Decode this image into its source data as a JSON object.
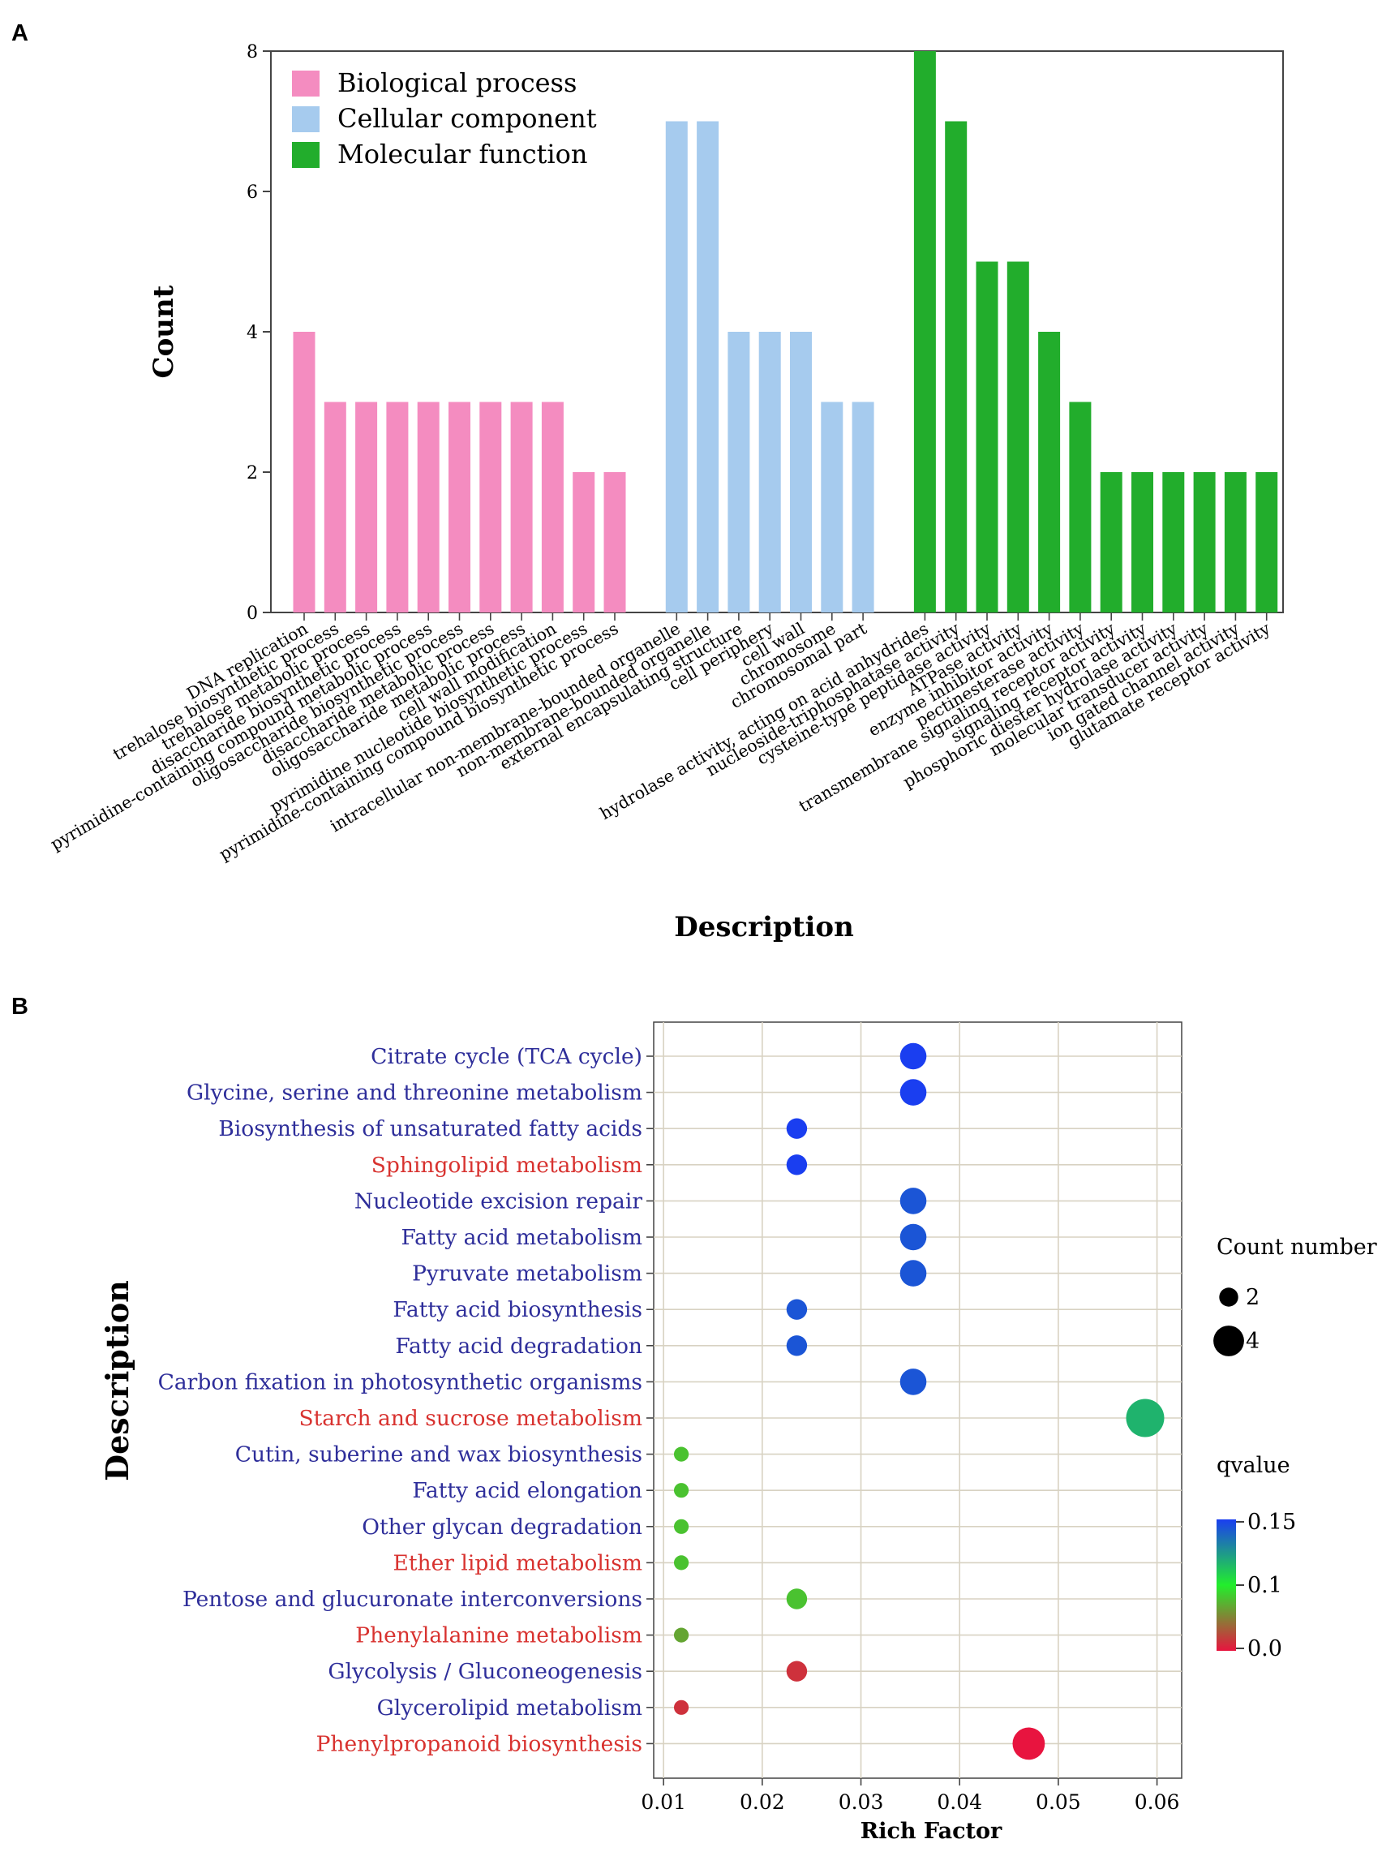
{
  "chart_data": [
    {
      "type": "bar",
      "panel_label": "A",
      "title": "",
      "xlabel": "Description",
      "ylabel": "Count",
      "ylim": [
        0,
        8
      ],
      "yticks": [
        0,
        2,
        4,
        6,
        8
      ],
      "grid": false,
      "legend_position": "top-left",
      "series": [
        {
          "name": "Biological process",
          "color": "#f48cc0",
          "categories": [
            "DNA replication",
            "trehalose biosynthetic process",
            "trehalose metabolic process",
            "disaccharide biosynthetic process",
            "pyrimidine-containing compound metabolic process",
            "oligosaccharide biosynthetic process",
            "disaccharide metabolic process",
            "oligosaccharide metabolic process",
            "cell wall modification",
            "pyrimidine nucleotide biosynthetic process",
            "pyrimidine-containing compound biosynthetic process"
          ],
          "values": [
            4,
            3,
            3,
            3,
            3,
            3,
            3,
            3,
            3,
            2,
            2
          ]
        },
        {
          "name": "Cellular component",
          "color": "#a6cbee",
          "categories": [
            "intracellular non-membrane-bounded organelle",
            "non-membrane-bounded organelle",
            "external encapsulating structure",
            "cell periphery",
            "cell wall",
            "chromosome",
            "chromosomal part"
          ],
          "values": [
            7,
            7,
            4,
            4,
            4,
            3,
            3
          ]
        },
        {
          "name": "Molecular function",
          "color": "#22ad2c",
          "categories": [
            "hydrolase activity, acting on acid anhydrides",
            "nucleoside-triphosphatase activity",
            "cysteine-type peptidase activity",
            "ATPase activity",
            "enzyme inhibitor activity",
            "pectinesterase activity",
            "transmembrane signaling receptor activity",
            "signaling receptor activity",
            "phosphoric diester hydrolase activity",
            "molecular transducer activity",
            "ion gated channel activity",
            "glutamate receptor activity"
          ],
          "values": [
            8,
            7,
            5,
            5,
            4,
            3,
            2,
            2,
            2,
            2,
            2,
            2
          ]
        }
      ]
    },
    {
      "type": "scatter",
      "panel_label": "B",
      "title": "",
      "xlabel": "Rich Factor",
      "ylabel": "Description",
      "xlim": [
        0.009,
        0.0625
      ],
      "xticks": [
        0.01,
        0.02,
        0.03,
        0.04,
        0.05,
        0.06
      ],
      "xtick_labels": [
        "0.01",
        "0.02",
        "0.03",
        "0.04",
        "0.05",
        "0.06"
      ],
      "grid": true,
      "size_legend_title": "Count number",
      "size_legend": [
        2,
        4
      ],
      "color_legend_title": "qvalue",
      "color_legend_ticks": [
        "0.15",
        "0.1",
        "0.0"
      ],
      "color_scale": [
        "#e8143f",
        "#22ee2c",
        "#1a3ef0"
      ],
      "terms": [
        {
          "name": "Citrate cycle (TCA cycle)",
          "label_color": "#2e2e9a",
          "rich_factor": 0.0353,
          "count": 3,
          "qvalue": 0.15
        },
        {
          "name": "Glycine, serine and threonine metabolism",
          "label_color": "#2e2e9a",
          "rich_factor": 0.0353,
          "count": 3,
          "qvalue": 0.15
        },
        {
          "name": "Biosynthesis of unsaturated fatty acids",
          "label_color": "#2e2e9a",
          "rich_factor": 0.0235,
          "count": 2,
          "qvalue": 0.15
        },
        {
          "name": "Sphingolipid metabolism",
          "label_color": "#d8322f",
          "rich_factor": 0.0235,
          "count": 2,
          "qvalue": 0.15
        },
        {
          "name": "Nucleotide excision repair",
          "label_color": "#2e2e9a",
          "rich_factor": 0.0353,
          "count": 3,
          "qvalue": 0.14
        },
        {
          "name": "Fatty acid metabolism",
          "label_color": "#2e2e9a",
          "rich_factor": 0.0353,
          "count": 3,
          "qvalue": 0.14
        },
        {
          "name": "Pyruvate metabolism",
          "label_color": "#2e2e9a",
          "rich_factor": 0.0353,
          "count": 3,
          "qvalue": 0.14
        },
        {
          "name": "Fatty acid biosynthesis",
          "label_color": "#2e2e9a",
          "rich_factor": 0.0235,
          "count": 2,
          "qvalue": 0.14
        },
        {
          "name": "Fatty acid degradation",
          "label_color": "#2e2e9a",
          "rich_factor": 0.0235,
          "count": 2,
          "qvalue": 0.14
        },
        {
          "name": "Carbon fixation in photosynthetic organisms",
          "label_color": "#2e2e9a",
          "rich_factor": 0.0353,
          "count": 3,
          "qvalue": 0.14
        },
        {
          "name": "Starch and sucrose metabolism",
          "label_color": "#d8322f",
          "rich_factor": 0.0588,
          "count": 5,
          "qvalue": 0.1
        },
        {
          "name": "Cutin, suberine and wax biosynthesis",
          "label_color": "#2e2e9a",
          "rich_factor": 0.0118,
          "count": 1,
          "qvalue": 0.06
        },
        {
          "name": "Fatty acid elongation",
          "label_color": "#2e2e9a",
          "rich_factor": 0.0118,
          "count": 1,
          "qvalue": 0.06
        },
        {
          "name": "Other glycan degradation",
          "label_color": "#2e2e9a",
          "rich_factor": 0.0118,
          "count": 1,
          "qvalue": 0.06
        },
        {
          "name": "Ether lipid metabolism",
          "label_color": "#d8322f",
          "rich_factor": 0.0118,
          "count": 1,
          "qvalue": 0.06
        },
        {
          "name": "Pentose and glucuronate interconversions",
          "label_color": "#2e2e9a",
          "rich_factor": 0.0235,
          "count": 2,
          "qvalue": 0.06
        },
        {
          "name": "Phenylalanine metabolism",
          "label_color": "#d8322f",
          "rich_factor": 0.0118,
          "count": 1,
          "qvalue": 0.05
        },
        {
          "name": "Glycolysis / Gluconeogenesis",
          "label_color": "#2e2e9a",
          "rich_factor": 0.0235,
          "count": 2,
          "qvalue": 0.01
        },
        {
          "name": "Glycerolipid metabolism",
          "label_color": "#2e2e9a",
          "rich_factor": 0.0118,
          "count": 1,
          "qvalue": 0.01
        },
        {
          "name": "Phenylpropanoid biosynthesis",
          "label_color": "#d8322f",
          "rich_factor": 0.047,
          "count": 4,
          "qvalue": 0.0
        }
      ]
    }
  ]
}
